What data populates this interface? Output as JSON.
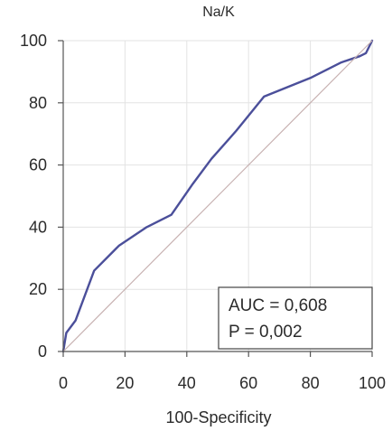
{
  "chart_data": {
    "type": "line",
    "title": "Na/K",
    "xlabel": "100-Specificity",
    "ylabel": "",
    "xlim": [
      0,
      100
    ],
    "ylim": [
      0,
      100
    ],
    "x_ticks": [
      "0",
      "20",
      "40",
      "60",
      "80",
      "100"
    ],
    "y_ticks": [
      "0",
      "20",
      "40",
      "60",
      "80",
      "100"
    ],
    "grid": true,
    "legend": {
      "placement": "bottom-right",
      "entries": [
        "AUC = 0,608",
        "P = 0,002"
      ]
    },
    "series": [
      {
        "color": "#4b4f9a",
        "x": [
          0,
          1,
          4,
          10,
          18,
          27,
          35,
          42,
          48,
          56,
          65,
          70,
          80,
          90,
          96,
          98,
          100
        ],
        "y": [
          0,
          6,
          10,
          26,
          34,
          40,
          44,
          54,
          62,
          71,
          82,
          84,
          88,
          93,
          95,
          96,
          100
        ]
      },
      {
        "color": "#c7b1b1",
        "x": [
          0,
          100
        ],
        "y": [
          0,
          100
        ]
      }
    ]
  }
}
